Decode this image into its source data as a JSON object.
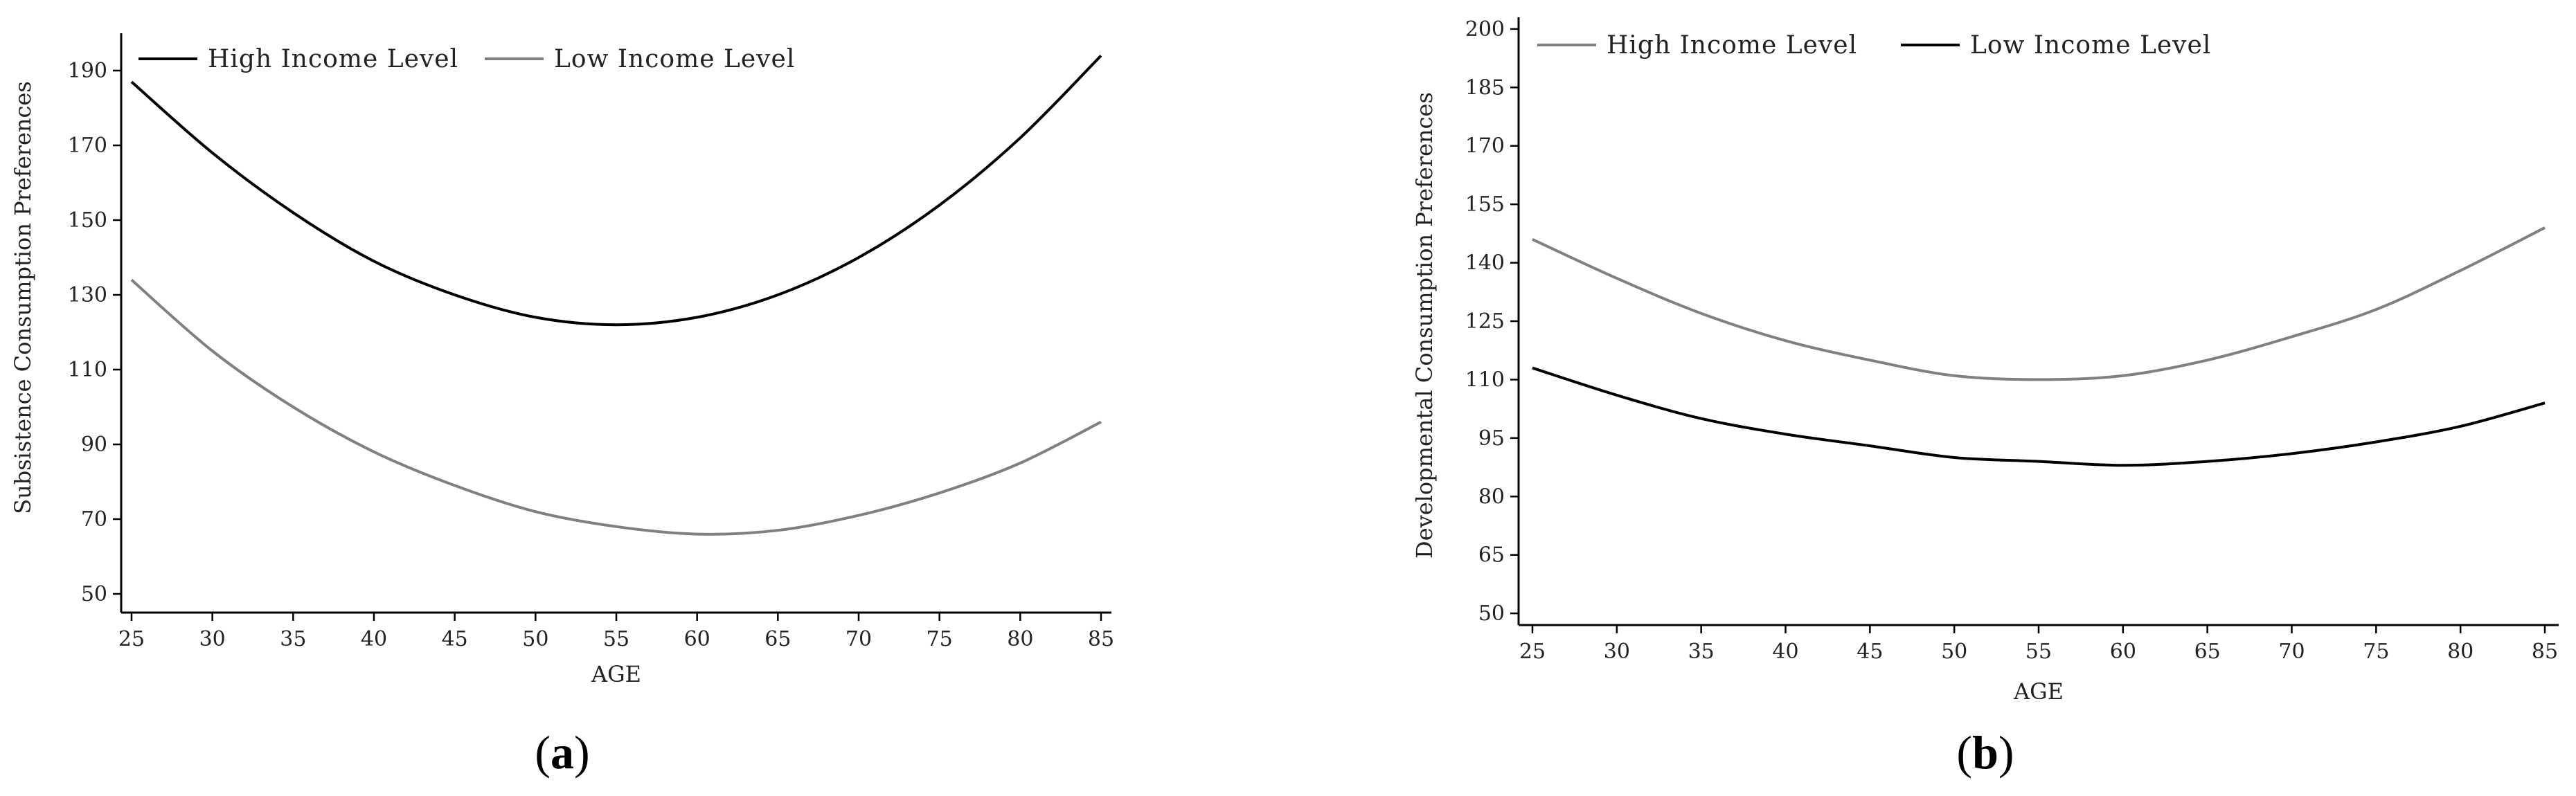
{
  "chart_data": [
    {
      "type": "line",
      "panel_label": "a",
      "xlabel": "AGE",
      "ylabel": "Subsistence Consumption Preferences",
      "xlim": [
        25,
        85
      ],
      "ylim": [
        45,
        200
      ],
      "xticks": [
        25,
        30,
        35,
        40,
        45,
        50,
        55,
        60,
        65,
        70,
        75,
        80,
        85
      ],
      "yticks": [
        50,
        70,
        90,
        110,
        130,
        150,
        170,
        190
      ],
      "legend_position": "top-left",
      "grid": false,
      "x": [
        25,
        30,
        35,
        40,
        45,
        50,
        55,
        60,
        65,
        70,
        75,
        80,
        85
      ],
      "series": [
        {
          "name": "High Income Level",
          "color": "#000000",
          "values": [
            187,
            168,
            152,
            139,
            130,
            124,
            122,
            124,
            130,
            140,
            154,
            172,
            194
          ]
        },
        {
          "name": "Low Income Level",
          "color": "#808080",
          "values": [
            134,
            115,
            100,
            88,
            79,
            72,
            68,
            66,
            67,
            71,
            77,
            85,
            96
          ]
        }
      ]
    },
    {
      "type": "line",
      "panel_label": "b",
      "xlabel": "AGE",
      "ylabel": "Developmental Consumption Preferences",
      "xlim": [
        25,
        85
      ],
      "ylim": [
        47,
        203
      ],
      "xticks": [
        25,
        30,
        35,
        40,
        45,
        50,
        55,
        60,
        65,
        70,
        75,
        80,
        85
      ],
      "yticks": [
        50,
        65,
        80,
        95,
        110,
        125,
        140,
        155,
        170,
        185,
        200
      ],
      "legend_position": "top-left",
      "grid": false,
      "x": [
        25,
        30,
        35,
        40,
        45,
        50,
        55,
        60,
        65,
        70,
        75,
        80,
        85
      ],
      "series": [
        {
          "name": "High Income Level",
          "color": "#808080",
          "values": [
            146,
            136,
            127,
            120,
            115,
            111,
            110,
            111,
            115,
            121,
            128,
            138,
            149
          ]
        },
        {
          "name": "Low Income Level",
          "color": "#000000",
          "values": [
            113,
            106,
            100,
            96,
            93,
            90,
            89,
            88,
            89,
            91,
            94,
            98,
            104
          ]
        }
      ]
    }
  ]
}
